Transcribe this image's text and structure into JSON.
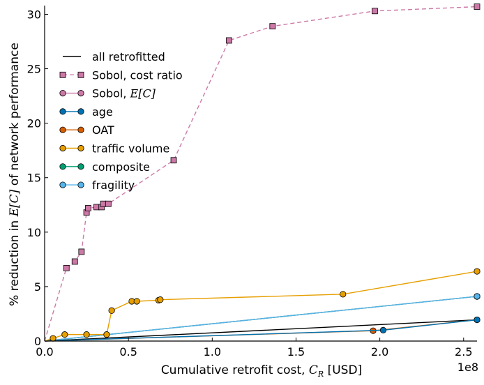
{
  "chart_data": {
    "type": "line",
    "title": "",
    "xlabel": "Cumulative retrofit cost, C_R [USD]",
    "xlabel_parts": {
      "prefix": "Cumulative retrofit cost, ",
      "symbol": "C",
      "subscript": "R",
      "suffix": " [USD]"
    },
    "ylabel": "% reduction in E[C] of network performance",
    "ylabel_parts": {
      "prefix": "% reduction in ",
      "symbol": "E[C]",
      "suffix": " of network performance"
    },
    "x_offset_label": "1e8",
    "xlim": [
      0,
      2.58
    ],
    "ylim": [
      0,
      30.8
    ],
    "x_scale_note": "x values in units of 1e8 USD",
    "xticks": [
      0.0,
      0.5,
      1.0,
      1.5,
      2.0,
      2.5
    ],
    "xtick_labels": [
      "0.0",
      "0.5",
      "1.0",
      "1.5",
      "2.0",
      "2.5"
    ],
    "yticks": [
      0,
      5,
      10,
      15,
      20,
      25,
      30
    ],
    "ytick_labels": [
      "0",
      "5",
      "10",
      "15",
      "20",
      "25",
      "30"
    ],
    "grid": false,
    "legend_position": "upper-left",
    "series": [
      {
        "name": "all retrofitted",
        "color": "#000000",
        "style": "solid",
        "marker": "none",
        "x": [
          0,
          2.58
        ],
        "y": [
          0,
          1.95
        ]
      },
      {
        "name": "Sobol, cost ratio",
        "color": "#CC79A7",
        "style": "dashed",
        "marker": "square",
        "x": [
          0,
          0.13,
          0.18,
          0.22,
          0.25,
          0.26,
          0.31,
          0.34,
          0.35,
          0.38,
          0.77,
          1.1,
          1.36,
          1.97,
          2.58
        ],
        "y": [
          0,
          6.7,
          7.3,
          8.2,
          11.8,
          12.2,
          12.3,
          12.3,
          12.6,
          12.6,
          16.6,
          27.6,
          28.9,
          30.3,
          30.7
        ]
      },
      {
        "name": "Sobol, E[C]",
        "color": "#CC79A7",
        "style": "solid",
        "marker": "circle",
        "x": [
          0,
          2.58
        ],
        "y": [
          0,
          4.1
        ]
      },
      {
        "name": "age",
        "color": "#0072B2",
        "style": "solid",
        "marker": "circle",
        "x": [
          0,
          2.02,
          2.58
        ],
        "y": [
          0,
          1.0,
          1.95
        ]
      },
      {
        "name": "OAT",
        "color": "#D55E00",
        "style": "solid",
        "marker": "circle",
        "x": [
          0,
          1.96,
          2.58
        ],
        "y": [
          0,
          0.95,
          1.95
        ]
      },
      {
        "name": "traffic volume",
        "color": "#E69F00",
        "style": "solid",
        "marker": "circle",
        "x": [
          0,
          0.05,
          0.12,
          0.25,
          0.37,
          0.4,
          0.52,
          0.55,
          0.68,
          0.69,
          1.78,
          2.58
        ],
        "y": [
          0,
          0.25,
          0.6,
          0.6,
          0.6,
          2.8,
          3.65,
          3.65,
          3.75,
          3.8,
          4.3,
          6.4
        ]
      },
      {
        "name": "composite",
        "color": "#009E73",
        "style": "solid",
        "marker": "circle",
        "x": [
          0,
          2.58
        ],
        "y": [
          0,
          4.1
        ]
      },
      {
        "name": "fragility",
        "color": "#56B4E9",
        "style": "solid",
        "marker": "circle",
        "x": [
          0,
          2.58
        ],
        "y": [
          0,
          4.1
        ]
      }
    ],
    "legend": [
      {
        "label": "all retrofitted"
      },
      {
        "label": "Sobol, cost ratio"
      },
      {
        "label_prefix": "Sobol, ",
        "label_math": "E[C]"
      },
      {
        "label": "age"
      },
      {
        "label": "OAT"
      },
      {
        "label": "traffic volume"
      },
      {
        "label": "composite"
      },
      {
        "label": "fragility"
      }
    ]
  }
}
